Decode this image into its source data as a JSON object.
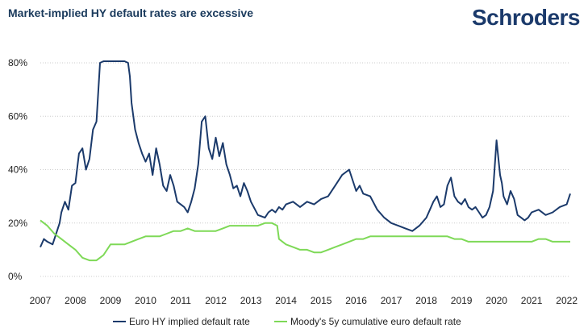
{
  "header": {
    "title": "Market-implied HY default rates are excessive",
    "brand": "Schroders"
  },
  "colors": {
    "series1": "#1b3a6b",
    "series2": "#7ed957",
    "grid": "#cccccc",
    "text": "#222222"
  },
  "chart_data": {
    "type": "line",
    "title": "Market-implied HY default rates are excessive",
    "xlabel": "",
    "ylabel": "",
    "xlim": [
      2007,
      2022.1
    ],
    "ylim": [
      0,
      80
    ],
    "y_ticks": [
      0,
      20,
      40,
      60,
      80
    ],
    "y_tick_labels": [
      "0%",
      "20%",
      "40%",
      "60%",
      "80%"
    ],
    "x_tick_labels": [
      "2007",
      "2008",
      "2009",
      "2010",
      "2011",
      "2012",
      "2013",
      "2014",
      "2015",
      "2016",
      "2017",
      "2018",
      "2019",
      "2020",
      "2021",
      "2022"
    ],
    "legend": "bottom-center",
    "series": [
      {
        "name": "Euro HY implied default rate",
        "x": [
          2007,
          2007.1,
          2007.2,
          2007.35,
          2007.45,
          2007.55,
          2007.6,
          2007.7,
          2007.8,
          2007.9,
          2008,
          2008.1,
          2008.2,
          2008.3,
          2008.4,
          2008.5,
          2008.6,
          2008.7,
          2008.8,
          2008.85,
          2008.9,
          2009,
          2009.2,
          2009.4,
          2009.5,
          2009.55,
          2009.6,
          2009.7,
          2009.8,
          2009.9,
          2010,
          2010.1,
          2010.2,
          2010.3,
          2010.4,
          2010.5,
          2010.6,
          2010.7,
          2010.8,
          2010.9,
          2011,
          2011.1,
          2011.2,
          2011.3,
          2011.4,
          2011.5,
          2011.6,
          2011.7,
          2011.8,
          2011.9,
          2012,
          2012.1,
          2012.2,
          2012.3,
          2012.4,
          2012.5,
          2012.6,
          2012.7,
          2012.8,
          2012.9,
          2013,
          2013.2,
          2013.4,
          2013.5,
          2013.6,
          2013.7,
          2013.8,
          2013.9,
          2014,
          2014.2,
          2014.4,
          2014.6,
          2014.8,
          2015,
          2015.2,
          2015.4,
          2015.6,
          2015.8,
          2016,
          2016.1,
          2016.2,
          2016.4,
          2016.6,
          2016.8,
          2017,
          2017.2,
          2017.4,
          2017.6,
          2017.8,
          2018,
          2018.1,
          2018.2,
          2018.3,
          2018.4,
          2018.5,
          2018.6,
          2018.7,
          2018.8,
          2018.9,
          2019,
          2019.1,
          2019.2,
          2019.3,
          2019.4,
          2019.5,
          2019.6,
          2019.7,
          2019.8,
          2019.9,
          2020,
          2020.1,
          2020.15,
          2020.2,
          2020.3,
          2020.4,
          2020.5,
          2020.6,
          2020.7,
          2020.8,
          2020.9,
          2021,
          2021.2,
          2021.4,
          2021.6,
          2021.8,
          2022,
          2022.05,
          2022.1
        ],
        "values": [
          11,
          14,
          13,
          12,
          16,
          20,
          24,
          28,
          25,
          34,
          35,
          46,
          48,
          40,
          44,
          55,
          58,
          80,
          85,
          95,
          90,
          95,
          90,
          82,
          80,
          75,
          65,
          55,
          50,
          46,
          43,
          46,
          38,
          48,
          42,
          34,
          32,
          38,
          34,
          28,
          27,
          26,
          24,
          28,
          33,
          42,
          58,
          60,
          48,
          44,
          52,
          45,
          50,
          42,
          38,
          33,
          34,
          30,
          35,
          32,
          28,
          23,
          22,
          24,
          25,
          24,
          26,
          25,
          27,
          28,
          26,
          28,
          27,
          29,
          30,
          34,
          38,
          40,
          32,
          34,
          31,
          30,
          25,
          22,
          20,
          19,
          18,
          17,
          19,
          22,
          25,
          28,
          30,
          26,
          27,
          34,
          37,
          30,
          28,
          27,
          29,
          26,
          25,
          26,
          24,
          22,
          23,
          26,
          32,
          51,
          38,
          35,
          30,
          27,
          32,
          29,
          23,
          22,
          21,
          22,
          24,
          25,
          23,
          24,
          26,
          27,
          29,
          31
        ],
        "color": "#1b3a6b"
      },
      {
        "name": "Moody's 5y cumulative euro default rate",
        "x": [
          2007,
          2007.2,
          2007.4,
          2007.6,
          2007.8,
          2008,
          2008.2,
          2008.4,
          2008.6,
          2008.8,
          2009,
          2009.2,
          2009.4,
          2009.6,
          2009.8,
          2010,
          2010.2,
          2010.4,
          2010.6,
          2010.8,
          2011,
          2011.2,
          2011.4,
          2011.6,
          2011.8,
          2012,
          2012.2,
          2012.4,
          2012.6,
          2012.8,
          2013,
          2013.2,
          2013.4,
          2013.6,
          2013.75,
          2013.8,
          2013.9,
          2014,
          2014.2,
          2014.4,
          2014.6,
          2014.8,
          2015,
          2015.2,
          2015.4,
          2015.6,
          2015.8,
          2016,
          2016.2,
          2016.4,
          2016.6,
          2016.8,
          2017,
          2017.2,
          2017.4,
          2017.6,
          2017.8,
          2018,
          2018.2,
          2018.4,
          2018.6,
          2018.8,
          2019,
          2019.2,
          2019.4,
          2019.6,
          2019.8,
          2020,
          2020.2,
          2020.4,
          2020.6,
          2020.8,
          2021,
          2021.2,
          2021.4,
          2021.6,
          2021.8,
          2022,
          2022.1
        ],
        "values": [
          21,
          19,
          16,
          14,
          12,
          10,
          7,
          6,
          6,
          8,
          12,
          12,
          12,
          13,
          14,
          15,
          15,
          15,
          16,
          17,
          17,
          18,
          17,
          17,
          17,
          17,
          18,
          19,
          19,
          19,
          19,
          19,
          20,
          20,
          19,
          14,
          13,
          12,
          11,
          10,
          10,
          9,
          9,
          10,
          11,
          12,
          13,
          14,
          14,
          15,
          15,
          15,
          15,
          15,
          15,
          15,
          15,
          15,
          15,
          15,
          15,
          14,
          14,
          13,
          13,
          13,
          13,
          13,
          13,
          13,
          13,
          13,
          13,
          14,
          14,
          13,
          13,
          13,
          13
        ],
        "color": "#7ed957"
      }
    ]
  }
}
